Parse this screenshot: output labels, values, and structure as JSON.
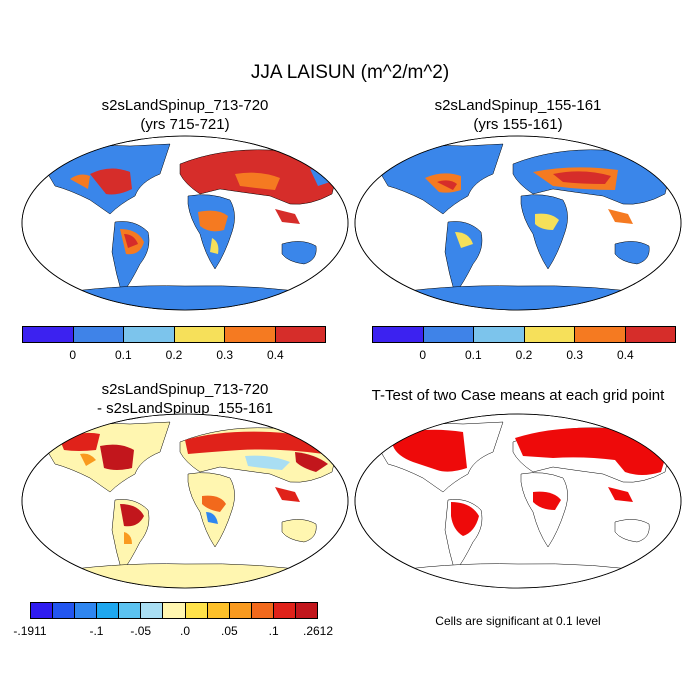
{
  "main_title": "JJA LAISUN (m^2/m^2)",
  "panels": [
    {
      "title_line1": "s2sLandSpinup_713-720",
      "title_line2": "(yrs 715-721)"
    },
    {
      "title_line1": "s2sLandSpinup_155-161",
      "title_line2": "(yrs 155-161)"
    },
    {
      "title_line1": "s2sLandSpinup_713-720",
      "title_line2": "- s2sLandSpinup_155-161"
    },
    {
      "title_line1": "T-Test of two Case means at each grid point"
    }
  ],
  "colorbar_abs": {
    "colors": [
      "#3c22f0",
      "#3f83e8",
      "#7cc4ec",
      "#f6e05a",
      "#f57a21",
      "#d62d2a"
    ],
    "labels": [
      "0",
      "0.1",
      "0.2",
      "0.3",
      "0.4"
    ]
  },
  "colorbar_diff": {
    "colors": [
      "#2f1cf0",
      "#2356f0",
      "#2f86f0",
      "#1ea7ef",
      "#5cc3f1",
      "#a9def3",
      "#fff6b0",
      "#ffe24a",
      "#fdc02a",
      "#f99a1f",
      "#f2691c",
      "#e0221a",
      "#c2161c"
    ],
    "labels": [
      "-.1911",
      "-.1",
      "-.05",
      ".0",
      ".05",
      ".1",
      ".2612"
    ]
  },
  "ttest_note": "Cells are significant at 0.1 level",
  "colors": {
    "ocean_abs": "#3a86ea",
    "ttest_fill": "#ee0a0a"
  }
}
